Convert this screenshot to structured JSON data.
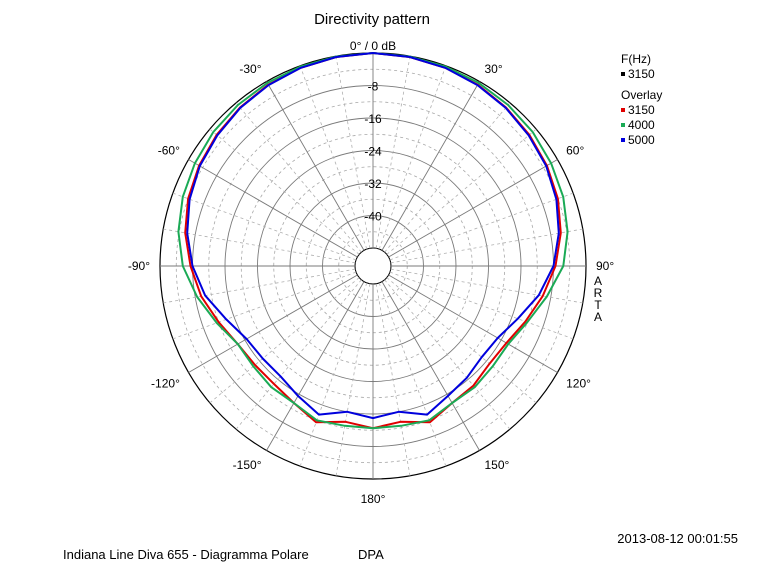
{
  "chart_data": {
    "type": "polar-line",
    "title": "Directivity pattern",
    "radial_unit": "dB",
    "radial_range": [
      -48,
      0
    ],
    "radial_ticks": [
      {
        "value": 0,
        "label": "0° / 0 dB"
      },
      {
        "value": -8,
        "label": "-8"
      },
      {
        "value": -16,
        "label": "-16"
      },
      {
        "value": -24,
        "label": "-24"
      },
      {
        "value": -32,
        "label": "-32"
      },
      {
        "value": -40,
        "label": "-40"
      }
    ],
    "angle_ticks": [
      {
        "angle": -30,
        "label": "-30°"
      },
      {
        "angle": 30,
        "label": "30°"
      },
      {
        "angle": -60,
        "label": "-60°"
      },
      {
        "angle": 60,
        "label": "60°"
      },
      {
        "angle": -90,
        "label": "-90°"
      },
      {
        "angle": 90,
        "label": "90°"
      },
      {
        "angle": -120,
        "label": "-120°"
      },
      {
        "angle": 120,
        "label": "120°"
      },
      {
        "angle": -150,
        "label": "-150°"
      },
      {
        "angle": 150,
        "label": "150°"
      },
      {
        "angle": 180,
        "label": "180°"
      }
    ],
    "legend": {
      "position": "top-right",
      "header": "F(Hz)",
      "main_entries": [
        {
          "label": "3150",
          "color": "#000000"
        }
      ],
      "overlay_header": "Overlay",
      "overlay_entries": [
        {
          "label": "3150",
          "color": "#e00000"
        },
        {
          "label": "4000",
          "color": "#1aaa55"
        },
        {
          "label": "5000",
          "color": "#0000dd"
        }
      ]
    },
    "angles": [
      0,
      10,
      20,
      30,
      40,
      50,
      60,
      70,
      80,
      90,
      100,
      110,
      120,
      130,
      140,
      150,
      160,
      170,
      180,
      -170,
      -160,
      -150,
      -140,
      -130,
      -120,
      -110,
      -100,
      -90,
      -80,
      -70,
      -60,
      -50,
      -40,
      -30,
      -20,
      -10
    ],
    "series": [
      {
        "name": "3150",
        "color": "#e00000",
        "values": [
          0,
          -0.2,
          -0.5,
          -0.9,
          -1.5,
          -2.2,
          -3.0,
          -4.0,
          -5.5,
          -7.5,
          -10.0,
          -12.5,
          -14.5,
          -15.0,
          -14.0,
          -13.5,
          -11.5,
          -13.5,
          -12.5,
          -13.5,
          -11.5,
          -13.5,
          -14.5,
          -14.5,
          -14.0,
          -12.0,
          -9.5,
          -7.5,
          -5.5,
          -4.0,
          -3.0,
          -2.2,
          -1.5,
          -0.9,
          -0.5,
          -0.2
        ]
      },
      {
        "name": "4000",
        "color": "#1aaa55",
        "values": [
          0,
          -0.1,
          -0.2,
          -0.4,
          -0.7,
          -1.1,
          -1.8,
          -2.6,
          -3.8,
          -5.6,
          -9.0,
          -12.0,
          -14.0,
          -14.0,
          -13.5,
          -13.5,
          -12.0,
          -12.5,
          -12.5,
          -12.5,
          -12.0,
          -13.5,
          -13.5,
          -14.0,
          -14.0,
          -11.5,
          -8.5,
          -5.6,
          -3.8,
          -2.6,
          -1.8,
          -1.1,
          -0.7,
          -0.4,
          -0.2,
          -0.1
        ]
      },
      {
        "name": "5000",
        "color": "#0000dd",
        "values": [
          0,
          -0.2,
          -0.5,
          -1.0,
          -1.6,
          -2.4,
          -3.2,
          -4.4,
          -6.0,
          -8.0,
          -11.0,
          -14.5,
          -17.0,
          -17.5,
          -16.5,
          -15.5,
          -13.5,
          -16.0,
          -15.0,
          -16.0,
          -13.5,
          -15.5,
          -17.0,
          -17.0,
          -16.5,
          -14.0,
          -10.5,
          -8.0,
          -6.0,
          -4.4,
          -3.2,
          -2.4,
          -1.6,
          -1.0,
          -0.5,
          -0.2
        ]
      }
    ]
  },
  "side_label": [
    "A",
    "R",
    "T",
    "A"
  ],
  "timestamp": "2013-08-12  00:01:55",
  "footer_left": "Indiana Line Diva 655 - Diagramma Polare",
  "footer_right": "DPA"
}
